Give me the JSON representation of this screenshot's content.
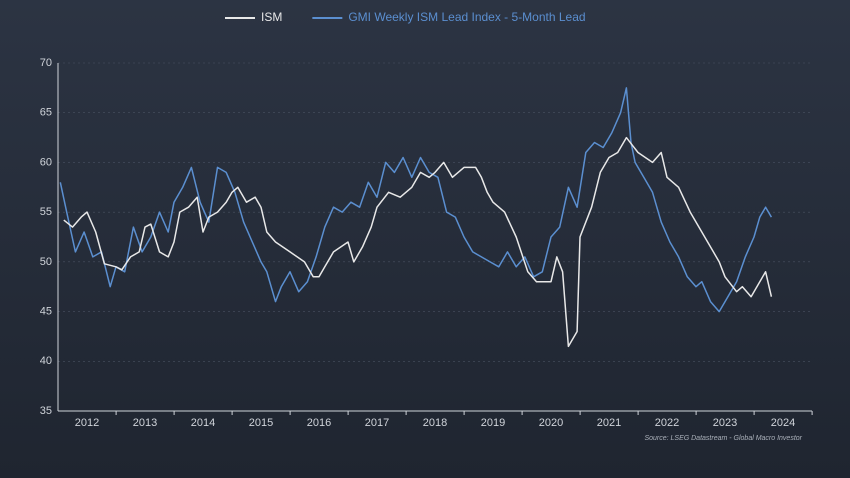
{
  "chart_data": {
    "type": "line",
    "source": "Source: LSEG Datastream - Global Macro Investor",
    "legend": "top",
    "grid": true,
    "xlim": [
      2012,
      2025
    ],
    "xticks": [
      {
        "value": 2012.5,
        "label": "2012"
      },
      {
        "value": 2013.5,
        "label": "2013"
      },
      {
        "value": 2014.5,
        "label": "2014"
      },
      {
        "value": 2015.5,
        "label": "2015"
      },
      {
        "value": 2016.5,
        "label": "2016"
      },
      {
        "value": 2017.5,
        "label": "2017"
      },
      {
        "value": 2018.5,
        "label": "2018"
      },
      {
        "value": 2019.5,
        "label": "2019"
      },
      {
        "value": 2020.5,
        "label": "2020"
      },
      {
        "value": 2021.5,
        "label": "2021"
      },
      {
        "value": 2022.5,
        "label": "2022"
      },
      {
        "value": 2023.5,
        "label": "2023"
      },
      {
        "value": 2024.5,
        "label": "2024"
      }
    ],
    "ylim": [
      35,
      70
    ],
    "yticks": [
      35,
      40,
      45,
      50,
      55,
      60,
      65,
      70
    ],
    "series": [
      {
        "name": "ISM",
        "color": "#e8e8e8",
        "x": [
          2012.1,
          2012.25,
          2012.4,
          2012.5,
          2012.65,
          2012.8,
          2013.0,
          2013.1,
          2013.25,
          2013.4,
          2013.5,
          2013.6,
          2013.75,
          2013.9,
          2014.0,
          2014.1,
          2014.25,
          2014.4,
          2014.5,
          2014.6,
          2014.75,
          2014.9,
          2015.0,
          2015.1,
          2015.25,
          2015.4,
          2015.5,
          2015.6,
          2015.75,
          2016.0,
          2016.25,
          2016.4,
          2016.5,
          2016.6,
          2016.75,
          2017.0,
          2017.1,
          2017.25,
          2017.4,
          2017.5,
          2017.7,
          2017.9,
          2018.1,
          2018.25,
          2018.4,
          2018.5,
          2018.65,
          2018.8,
          2019.0,
          2019.2,
          2019.3,
          2019.4,
          2019.5,
          2019.7,
          2019.9,
          2020.1,
          2020.25,
          2020.5,
          2020.6,
          2020.7,
          2020.8,
          2020.95,
          2021.0,
          2021.2,
          2021.35,
          2021.5,
          2021.65,
          2021.8,
          2022.0,
          2022.25,
          2022.4,
          2022.5,
          2022.7,
          2022.9,
          2023.1,
          2023.3,
          2023.4,
          2023.5,
          2023.7,
          2023.8,
          2023.95,
          2024.1,
          2024.2,
          2024.3
        ],
        "values": [
          54.2,
          53.5,
          54.5,
          55,
          53,
          49.8,
          49.5,
          49.2,
          50.5,
          51,
          53.5,
          53.8,
          51,
          50.5,
          52,
          55,
          55.5,
          56.5,
          53,
          54.5,
          55,
          56,
          57,
          57.5,
          56,
          56.5,
          55.5,
          53,
          52,
          51,
          50,
          48.5,
          48.5,
          49.5,
          51,
          52,
          50,
          51.5,
          53.5,
          55.5,
          57,
          56.5,
          57.5,
          59,
          58.5,
          59,
          60,
          58.5,
          59.5,
          59.5,
          58.5,
          57,
          56,
          55,
          52.5,
          49,
          48,
          48,
          50.5,
          49,
          41.5,
          43,
          52.5,
          55.5,
          59,
          60.5,
          61,
          62.5,
          61,
          60,
          61,
          58.5,
          57.5,
          55,
          53,
          51,
          50,
          48.5,
          47,
          47.5,
          46.5,
          48,
          49,
          46.5
        ]
      },
      {
        "name": "GMI Weekly ISM Lead Index - 5-Month Lead",
        "color": "#5b8fd0",
        "x": [
          2012.04,
          2012.15,
          2012.3,
          2012.45,
          2012.6,
          2012.75,
          2012.9,
          2013.0,
          2013.15,
          2013.3,
          2013.45,
          2013.6,
          2013.75,
          2013.9,
          2014.0,
          2014.15,
          2014.3,
          2014.45,
          2014.6,
          2014.75,
          2014.9,
          2015.05,
          2015.2,
          2015.35,
          2015.5,
          2015.6,
          2015.75,
          2015.85,
          2016.0,
          2016.15,
          2016.3,
          2016.45,
          2016.6,
          2016.75,
          2016.9,
          2017.05,
          2017.2,
          2017.35,
          2017.5,
          2017.65,
          2017.8,
          2017.95,
          2018.1,
          2018.25,
          2018.4,
          2018.55,
          2018.7,
          2018.85,
          2019.0,
          2019.15,
          2019.3,
          2019.45,
          2019.6,
          2019.75,
          2019.9,
          2020.05,
          2020.2,
          2020.35,
          2020.5,
          2020.65,
          2020.8,
          2020.95,
          2021.1,
          2021.25,
          2021.4,
          2021.55,
          2021.7,
          2021.8,
          2021.88,
          2021.95,
          2022.1,
          2022.25,
          2022.4,
          2022.55,
          2022.7,
          2022.85,
          2023.0,
          2023.1,
          2023.25,
          2023.4,
          2023.55,
          2023.7,
          2023.85,
          2024.0,
          2024.1,
          2024.2,
          2024.3
        ],
        "values": [
          58,
          55,
          51,
          53,
          50.5,
          51,
          47.5,
          49.5,
          49,
          53.5,
          51,
          52.5,
          55,
          53,
          56,
          57.5,
          59.5,
          56,
          54,
          59.5,
          59,
          57,
          54,
          52,
          50,
          49,
          46,
          47.5,
          49,
          47,
          48,
          50.5,
          53.5,
          55.5,
          55,
          56,
          55.5,
          58,
          56.5,
          60,
          59,
          60.5,
          58.5,
          60.5,
          59,
          58.5,
          55,
          54.5,
          52.5,
          51,
          50.5,
          50,
          49.5,
          51,
          49.5,
          50.5,
          48.5,
          49,
          52.5,
          53.5,
          57.5,
          55.5,
          61,
          62,
          61.5,
          63,
          65,
          67.5,
          62,
          60,
          58.5,
          57,
          54,
          52,
          50.5,
          48.5,
          47.5,
          48,
          46,
          45,
          46.5,
          48,
          50.5,
          52.5,
          54.5,
          55.5,
          54.5
        ]
      }
    ]
  }
}
